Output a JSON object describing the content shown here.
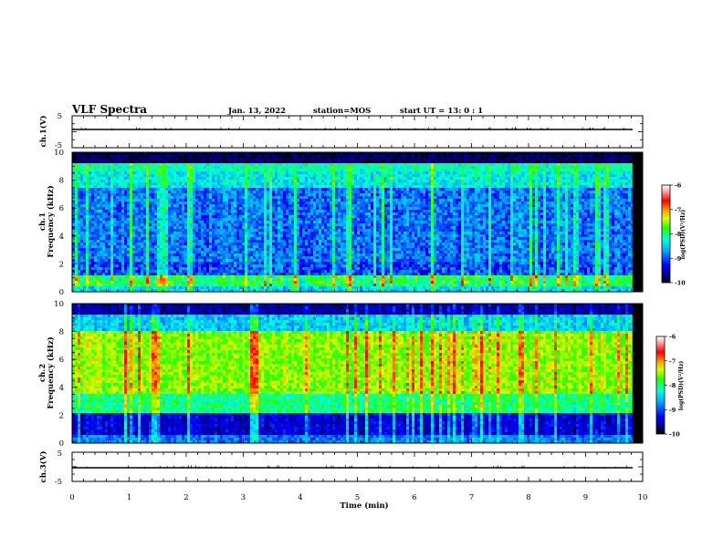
{
  "header": {
    "title": "VLF Spectra",
    "date": "Jan. 13, 2022",
    "station": "station=MOS",
    "start": "start  UT =  13: 0  : 1"
  },
  "chart_data": [
    {
      "type": "line",
      "name": "ch.1 waveform",
      "ylabel": "ch.1(V)",
      "ylim": [
        -5,
        5
      ],
      "yticks": [
        "5",
        "-5"
      ],
      "xlim": [
        0,
        10
      ],
      "x": [
        0,
        1,
        2,
        3,
        4,
        5,
        6,
        7,
        8,
        9,
        9.82
      ],
      "y": [
        0,
        0,
        0,
        0,
        0,
        0,
        0,
        0,
        0,
        0,
        0
      ]
    },
    {
      "type": "heatmap",
      "name": "ch.1 spectrogram",
      "ylabel": "ch.1 Frequency (kHz)",
      "ylim": [
        0,
        10
      ],
      "yticks": [
        "0",
        "2",
        "4",
        "6",
        "8",
        "10"
      ],
      "xlim": [
        0,
        10
      ],
      "data_xmax": 9.82,
      "colorbar": {
        "label": "log(PSD)(V²/Hz)",
        "range": [
          -10,
          -6
        ],
        "ticks": [
          "-6",
          "-7",
          "-8",
          "-9",
          "-10"
        ]
      }
    },
    {
      "type": "heatmap",
      "name": "ch.2 spectrogram",
      "ylabel": "ch.2 Frequency (kHz)",
      "ylim": [
        0,
        10
      ],
      "yticks": [
        "0",
        "2",
        "4",
        "6",
        "8",
        "10"
      ],
      "xlim": [
        0,
        10
      ],
      "data_xmax": 9.82,
      "colorbar": {
        "label": "log(PSD)(V²/Hz)",
        "range": [
          -10,
          -6
        ],
        "ticks": [
          "-6",
          "-7",
          "-8",
          "-9",
          "-10"
        ]
      }
    },
    {
      "type": "line",
      "name": "ch.3 waveform",
      "ylabel": "ch.3(V)",
      "ylim": [
        -5,
        5
      ],
      "yticks": [
        "5",
        "-5"
      ],
      "xlim": [
        0,
        10
      ],
      "x": [
        0,
        1,
        2,
        3,
        4,
        5,
        6,
        7,
        8,
        9,
        9.82
      ],
      "y": [
        0,
        0,
        0,
        0,
        0,
        0,
        0,
        0,
        0,
        0,
        0
      ]
    }
  ],
  "xaxis": {
    "label": "Time (min)",
    "ticks": [
      "0",
      "1",
      "2",
      "3",
      "4",
      "5",
      "6",
      "7",
      "8",
      "9",
      "10"
    ]
  },
  "colors": {
    "bar_top": "#ffffff",
    "bar_bottom": "#000000"
  }
}
